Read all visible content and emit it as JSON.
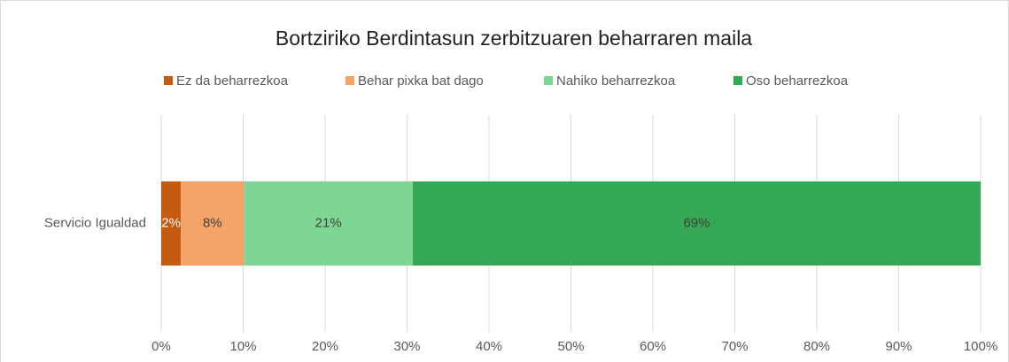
{
  "chart_data": {
    "type": "stacked_barh",
    "title": "Bortziriko Berdintasun zerbitzuaren beharraren maila",
    "categories": [
      "Servicio Igualdad"
    ],
    "series": [
      {
        "name": "Ez da beharrezkoa",
        "color": "#c55a11",
        "values": [
          2.4
        ],
        "value_labels": [
          "2%"
        ]
      },
      {
        "name": "Behar pixka bat dago",
        "color": "#f4a468",
        "values": [
          7.7
        ],
        "value_labels": [
          "8%"
        ]
      },
      {
        "name": "Nahiko beharrezkoa",
        "color": "#7dd694",
        "values": [
          20.6
        ],
        "value_labels": [
          "21%"
        ]
      },
      {
        "name": "Oso beharrezkoa",
        "color": "#34a853",
        "values": [
          69.3
        ],
        "value_labels": [
          "69%"
        ]
      }
    ],
    "xlim": [
      0,
      100
    ],
    "xticks": [
      {
        "value": 0,
        "label": "0%"
      },
      {
        "value": 10,
        "label": "10%"
      },
      {
        "value": 20,
        "label": "20%"
      },
      {
        "value": 30,
        "label": "30%"
      },
      {
        "value": 40,
        "label": "40%"
      },
      {
        "value": 50,
        "label": "50%"
      },
      {
        "value": 60,
        "label": "60%"
      },
      {
        "value": 70,
        "label": "70%"
      },
      {
        "value": 80,
        "label": "80%"
      },
      {
        "value": 90,
        "label": "90%"
      },
      {
        "value": 100,
        "label": "100%"
      }
    ],
    "grid": true,
    "legend": "top"
  }
}
